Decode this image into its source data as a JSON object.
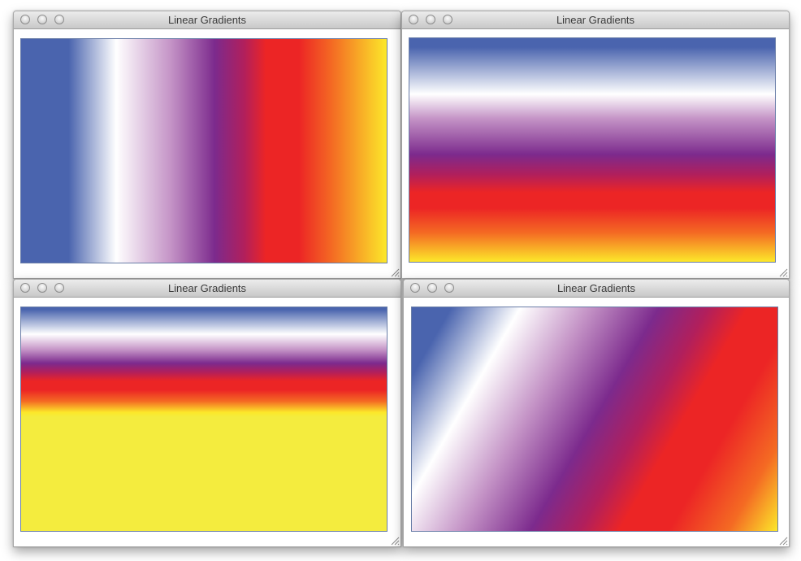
{
  "colors": {
    "blue": "#4a64ae",
    "white": "#ffffff",
    "lavender": "#c493c6",
    "purple": "#7c2a8d",
    "crimson": "#b11f5c",
    "red": "#ec2525",
    "orange": "#f46a23",
    "yellow": "#fce82a",
    "pale_yellow": "#f4ec3e"
  },
  "windows": [
    {
      "title": "Linear Gradients",
      "gradient": "horizontal"
    },
    {
      "title": "Linear Gradients",
      "gradient": "vertical"
    },
    {
      "title": "Linear Gradients",
      "gradient": "vertical-compressed"
    },
    {
      "title": "Linear Gradients",
      "gradient": "diagonal"
    }
  ]
}
